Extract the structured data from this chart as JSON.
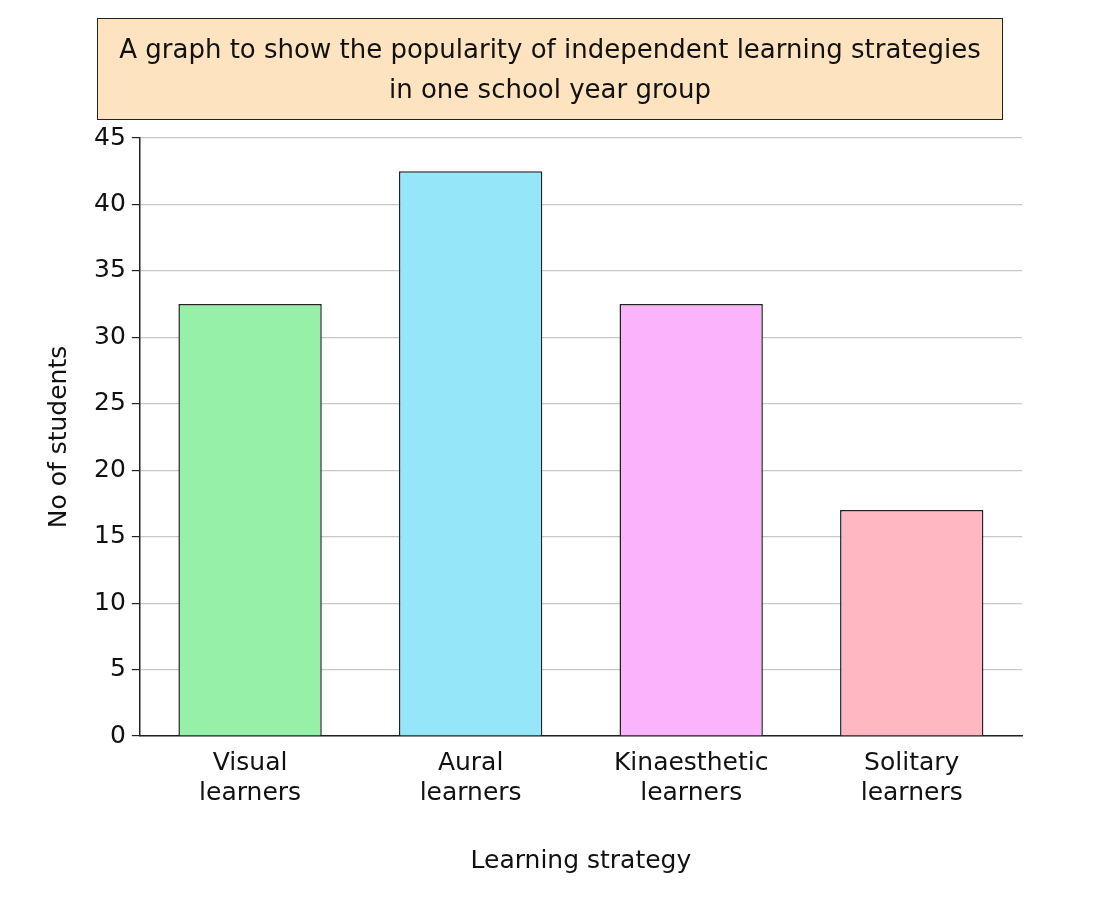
{
  "chart_data": {
    "type": "bar",
    "title": "A graph to show the popularity of independent learning strategies in one school year group",
    "xlabel": "Learning strategy",
    "ylabel": "No of students",
    "categories": [
      "Visual learners",
      "Aural learners",
      "Kinaesthetic learners",
      "Solitary learners"
    ],
    "values": [
      32.5,
      42.5,
      32.5,
      17
    ],
    "colors": [
      "#96f0a8",
      "#96e6fa",
      "#fbb4fb",
      "#ffb8c2"
    ],
    "ylim": [
      0,
      45
    ],
    "yticks": [
      0,
      5,
      10,
      15,
      20,
      25,
      30,
      35,
      40,
      45
    ],
    "grid": "y",
    "legend": false
  }
}
